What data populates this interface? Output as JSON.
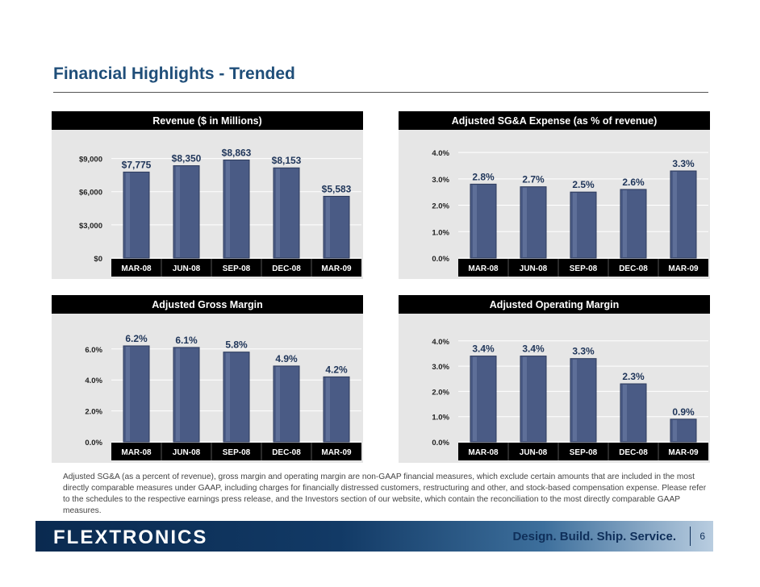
{
  "slide": {
    "title": "Financial Highlights - Trended",
    "footnote": "Adjusted SG&A (as a percent of revenue), gross margin and operating margin are non-GAAP financial measures, which exclude certain amounts that are included in the most directly comparable measures under GAAP, including charges for financially distressed customers, restructuring and other, and stock-based compensation expense. Please refer to the schedules to the respective earnings press release, and the Investors section of our website, which contain the reconciliation to the most directly comparable GAAP measures.",
    "logo": "FLEXTRONICS",
    "tagline": "Design. Build. Ship. Service.",
    "page_number": "6"
  },
  "colors": {
    "header_bg": "#000000",
    "header_text": "#ffffff",
    "plot_bg": "#e6e6e6",
    "gridline": "#ffffff",
    "bar_fill": "#4a5b85",
    "bar_edge": "#2c3a5c"
  },
  "chart_data": [
    {
      "type": "bar",
      "title": "Revenue ($ in Millions)",
      "categories": [
        "MAR-08",
        "JUN-08",
        "SEP-08",
        "DEC-08",
        "MAR-09"
      ],
      "values": [
        7775,
        8350,
        8863,
        8153,
        5583
      ],
      "labels": [
        "$7,775",
        "$8,350",
        "$8,863",
        "$8,153",
        "$5,583"
      ],
      "ylim": [
        0,
        10500
      ],
      "yticks": [
        0,
        3000,
        6000,
        9000
      ],
      "ytick_labels": [
        "$0",
        "$3,000",
        "$6,000",
        "$9,000"
      ],
      "xlabel": "",
      "ylabel": ""
    },
    {
      "type": "bar",
      "title": "Adjusted SG&A Expense (as % of revenue)",
      "categories": [
        "MAR-08",
        "JUN-08",
        "SEP-08",
        "DEC-08",
        "MAR-09"
      ],
      "values": [
        2.8,
        2.7,
        2.5,
        2.6,
        3.3
      ],
      "labels": [
        "2.8%",
        "2.7%",
        "2.5%",
        "2.6%",
        "3.3%"
      ],
      "ylim": [
        0,
        4.4
      ],
      "yticks": [
        0,
        1,
        2,
        3,
        4
      ],
      "ytick_labels": [
        "0.0%",
        "1.0%",
        "2.0%",
        "3.0%",
        "4.0%"
      ],
      "xlabel": "",
      "ylabel": ""
    },
    {
      "type": "bar",
      "title": "Adjusted Gross Margin",
      "categories": [
        "MAR-08",
        "JUN-08",
        "SEP-08",
        "DEC-08",
        "MAR-09"
      ],
      "values": [
        6.2,
        6.1,
        5.8,
        4.9,
        4.2
      ],
      "labels": [
        "6.2%",
        "6.1%",
        "5.8%",
        "4.9%",
        "4.2%"
      ],
      "ylim": [
        0,
        7.5
      ],
      "yticks": [
        0,
        2,
        4,
        6
      ],
      "ytick_labels": [
        "0.0%",
        "2.0%",
        "4.0%",
        "6.0%"
      ],
      "xlabel": "",
      "ylabel": ""
    },
    {
      "type": "bar",
      "title": "Adjusted Operating Margin",
      "categories": [
        "MAR-08",
        "JUN-08",
        "SEP-08",
        "DEC-08",
        "MAR-09"
      ],
      "values": [
        3.4,
        3.4,
        3.3,
        2.3,
        0.9
      ],
      "labels": [
        "3.4%",
        "3.4%",
        "3.3%",
        "2.3%",
        "0.9%"
      ],
      "ylim": [
        0,
        4.6
      ],
      "yticks": [
        0,
        1,
        2,
        3,
        4
      ],
      "ytick_labels": [
        "0.0%",
        "1.0%",
        "2.0%",
        "3.0%",
        "4.0%"
      ],
      "xlabel": "",
      "ylabel": ""
    }
  ]
}
